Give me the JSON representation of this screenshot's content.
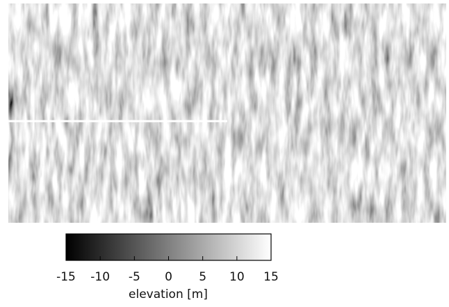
{
  "colorbar": {
    "label": "elevation [m]",
    "lim": [
      -15,
      15
    ],
    "ticks": [
      -15,
      -10,
      -5,
      0,
      5,
      10,
      15
    ],
    "colors": [
      "#000000",
      "#ffffff"
    ]
  }
}
